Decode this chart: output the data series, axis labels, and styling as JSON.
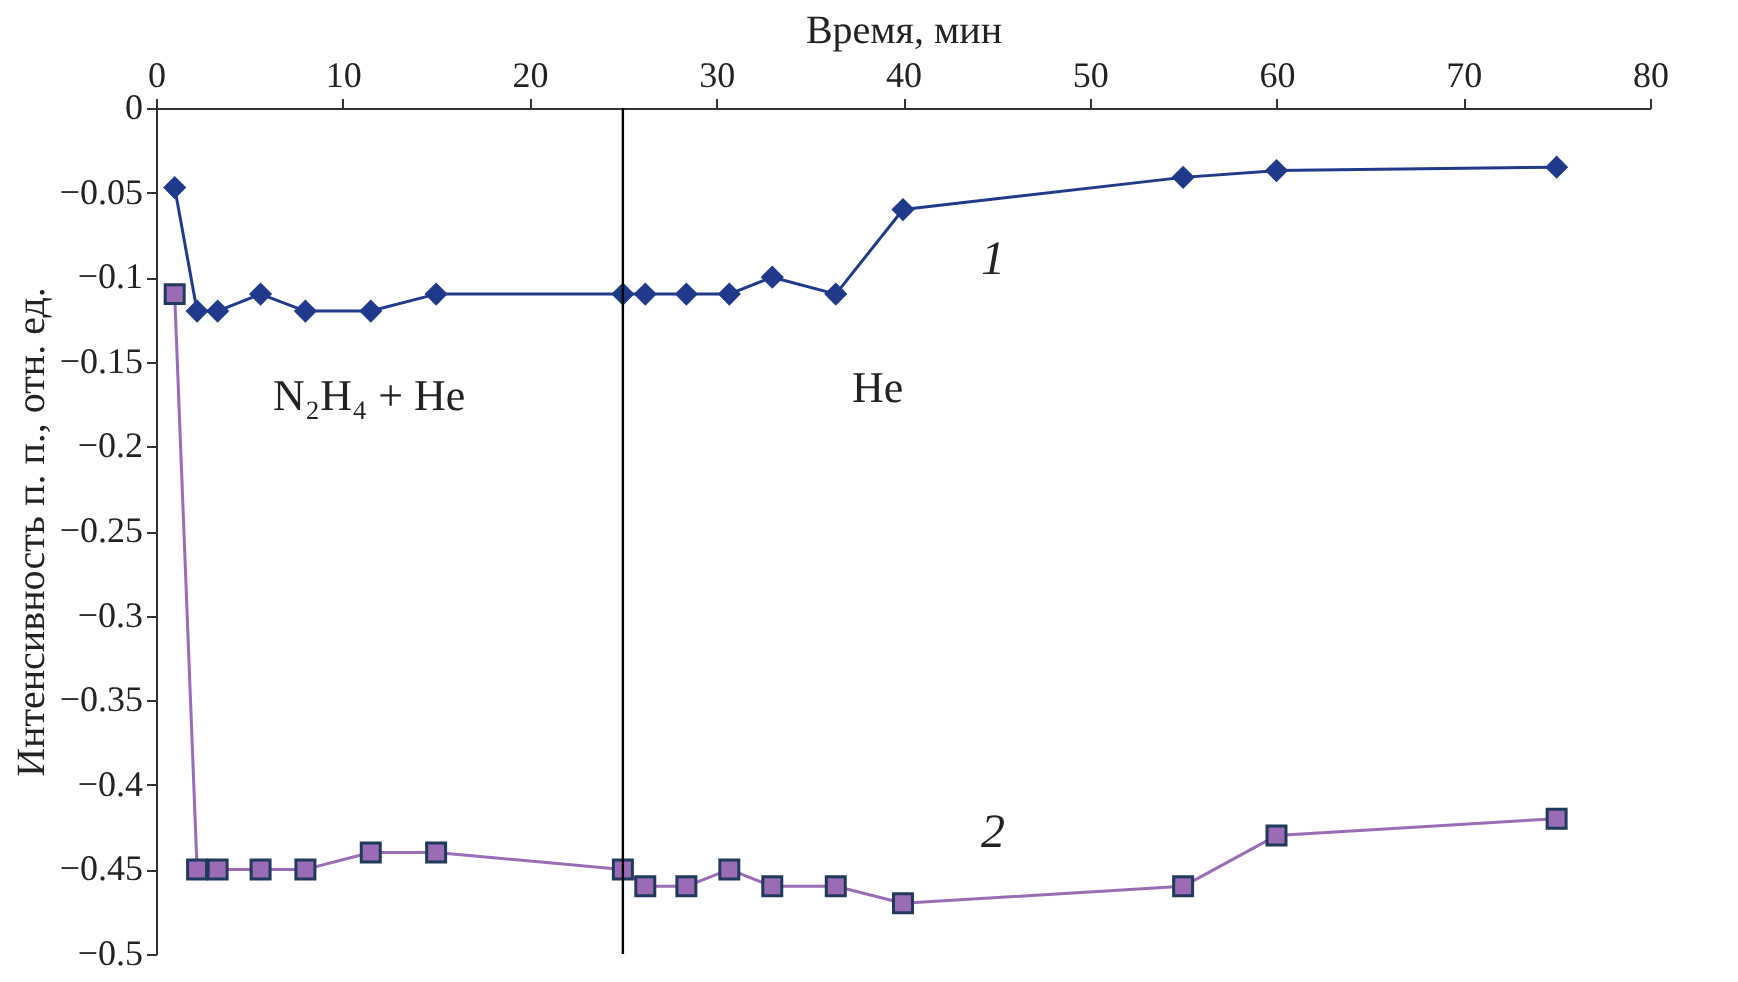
{
  "chart_data": {
    "type": "line",
    "xlabel": "Время,  мин",
    "ylabel": "Интенсивность п. п., отн. ед.",
    "xlim": [
      0,
      80
    ],
    "xticks": [
      0,
      10,
      20,
      30,
      40,
      50,
      60,
      70,
      80
    ],
    "ylim": [
      -0.5,
      0
    ],
    "yticks": [
      0,
      -0.05,
      -0.1,
      -0.15,
      -0.2,
      -0.25,
      -0.3,
      -0.35,
      -0.4,
      -0.45,
      -0.5
    ],
    "grid": false,
    "line_style": "solid",
    "series": [
      {
        "name": "1",
        "color": "#1f3a8a",
        "marker": "diamond",
        "x": [
          1,
          2.2,
          3.3,
          5.6,
          8,
          11.5,
          15,
          25,
          26.2,
          28.4,
          30.7,
          33,
          36.4,
          40,
          55,
          60,
          75
        ],
        "values": [
          -0.047,
          -0.12,
          -0.12,
          -0.11,
          -0.12,
          -0.12,
          -0.11,
          -0.11,
          -0.11,
          -0.11,
          -0.11,
          -0.1,
          -0.11,
          -0.06,
          -0.041,
          -0.037,
          -0.035
        ]
      },
      {
        "name": "2",
        "color": "#9b6bb5",
        "marker": "square",
        "x": [
          1,
          2.2,
          3.3,
          5.6,
          8,
          11.5,
          15,
          25,
          26.2,
          28.4,
          30.7,
          33,
          36.4,
          40,
          55,
          60,
          75
        ],
        "values": [
          -0.11,
          -0.45,
          -0.45,
          -0.45,
          -0.45,
          -0.44,
          -0.44,
          -0.45,
          -0.46,
          -0.46,
          -0.45,
          -0.46,
          -0.46,
          -0.47,
          -0.46,
          -0.43,
          -0.42
        ]
      }
    ],
    "ref_lines": [
      {
        "axis": "x",
        "value": 25,
        "color": "#000000"
      }
    ],
    "annotations": [
      "N₂H₄ + He",
      "He"
    ]
  }
}
